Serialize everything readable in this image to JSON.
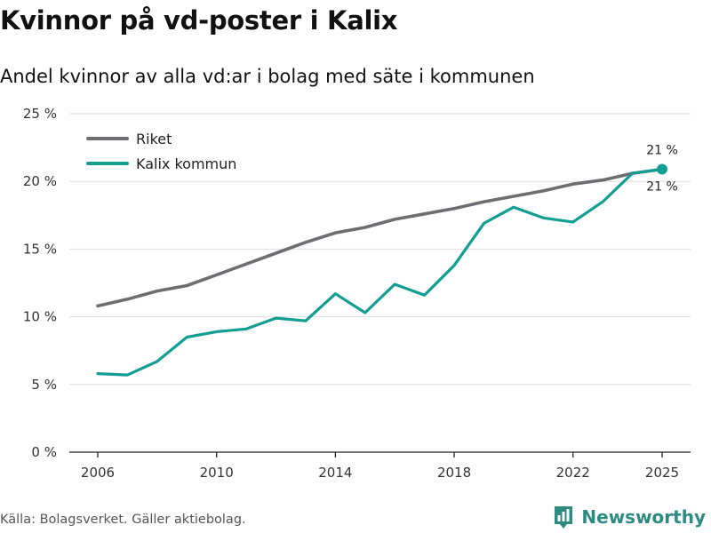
{
  "header": {
    "title": "Kvinnor på vd-poster i Kalix",
    "subtitle": "Andel kvinnor av alla vd:ar i bolag med säte i kommunen"
  },
  "footer": {
    "source": "Källa: Bolagsverket. Gäller aktiebolag.",
    "brand": "Newsworthy"
  },
  "colors": {
    "riket": "#6e6d72",
    "kalix": "#129e92",
    "grid": "#dddddd",
    "axis": "#222222",
    "brand": "#2e8b82"
  },
  "chart_data": {
    "type": "line",
    "title": "Kvinnor på vd-poster i Kalix",
    "subtitle": "Andel kvinnor av alla vd:ar i bolag med säte i kommunen",
    "xlabel": "",
    "ylabel": "",
    "x": [
      2006,
      2007,
      2008,
      2009,
      2010,
      2011,
      2012,
      2013,
      2014,
      2015,
      2016,
      2017,
      2018,
      2019,
      2020,
      2021,
      2022,
      2023,
      2024,
      2025
    ],
    "xlim": [
      2006,
      2025
    ],
    "x_ticks": [
      2006,
      2010,
      2014,
      2018,
      2022,
      2025
    ],
    "x_tick_labels": [
      "2006",
      "2010",
      "2014",
      "2018",
      "2022",
      "2025"
    ],
    "ylim": [
      0,
      25
    ],
    "y_ticks": [
      0,
      5,
      10,
      15,
      20,
      25
    ],
    "y_tick_labels": [
      "0 %",
      "5 %",
      "10 %",
      "15 %",
      "20 %",
      "25 %"
    ],
    "grid": true,
    "legend_position": "top-left",
    "series": [
      {
        "name": "Riket",
        "color": "#6e6d72",
        "values": [
          10.8,
          11.3,
          11.9,
          12.3,
          13.1,
          13.9,
          14.7,
          15.5,
          16.2,
          16.6,
          17.2,
          17.6,
          18.0,
          18.5,
          18.9,
          19.3,
          19.8,
          20.1,
          20.6,
          20.9
        ],
        "end_label": "21 %"
      },
      {
        "name": "Kalix kommun",
        "color": "#129e92",
        "values": [
          5.8,
          5.7,
          6.7,
          8.5,
          8.9,
          9.1,
          9.9,
          9.7,
          11.7,
          10.3,
          12.4,
          11.6,
          13.8,
          16.9,
          18.1,
          17.3,
          17.0,
          18.5,
          20.6,
          20.9
        ],
        "end_label": "21 %"
      }
    ]
  }
}
